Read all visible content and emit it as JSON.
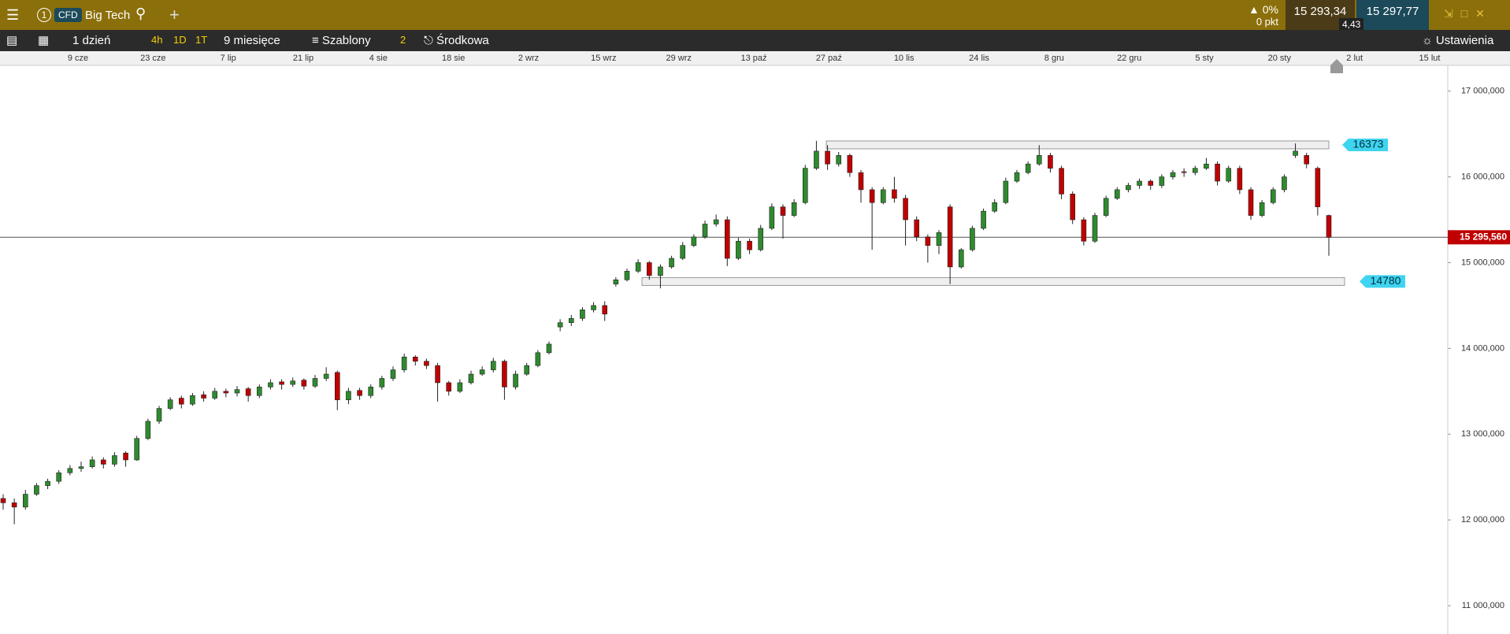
{
  "header": {
    "tab_number": "1",
    "badge": "CFD",
    "instrument": "Big Tech",
    "change_pct": "0%",
    "change_pts": "0 pkt",
    "sell": "15 293,34",
    "buy": "15 297,77",
    "spread": "4,43"
  },
  "toolbar": {
    "interval": "1 dzień",
    "quick_1": "4h",
    "quick_2": "1D",
    "quick_3": "1T",
    "range": "9 miesięce",
    "templates": "Szablony",
    "templates_count": "2",
    "price_type": "Środkowa",
    "settings": "Ustawienia"
  },
  "chart_data": {
    "type": "candlestick",
    "date_labels": [
      "9 cze",
      "23 cze",
      "7 lip",
      "21 lip",
      "4 sie",
      "18 sie",
      "2 wrz",
      "15 wrz",
      "29 wrz",
      "13 paź",
      "27 paź",
      "10 lis",
      "24 lis",
      "8 gru",
      "22 gru",
      "5 sty",
      "20 sty",
      "2 lut",
      "15 lut"
    ],
    "ohlc": [
      [
        12250,
        12300,
        12120,
        12200
      ],
      [
        12200,
        12250,
        11950,
        12150
      ],
      [
        12150,
        12350,
        12120,
        12300
      ],
      [
        12300,
        12430,
        12280,
        12400
      ],
      [
        12400,
        12480,
        12360,
        12450
      ],
      [
        12450,
        12580,
        12420,
        12550
      ],
      [
        12550,
        12640,
        12520,
        12600
      ],
      [
        12600,
        12680,
        12560,
        12620
      ],
      [
        12620,
        12740,
        12600,
        12700
      ],
      [
        12700,
        12730,
        12600,
        12650
      ],
      [
        12650,
        12790,
        12620,
        12750
      ],
      [
        12780,
        12800,
        12620,
        12700
      ],
      [
        12700,
        12980,
        12690,
        12950
      ],
      [
        12950,
        13180,
        12930,
        13150
      ],
      [
        13150,
        13330,
        13120,
        13300
      ],
      [
        13300,
        13430,
        13280,
        13400
      ],
      [
        13420,
        13450,
        13300,
        13350
      ],
      [
        13350,
        13480,
        13330,
        13450
      ],
      [
        13460,
        13500,
        13380,
        13420
      ],
      [
        13420,
        13540,
        13400,
        13500
      ],
      [
        13500,
        13530,
        13430,
        13480
      ],
      [
        13480,
        13560,
        13440,
        13520
      ],
      [
        13530,
        13550,
        13380,
        13450
      ],
      [
        13450,
        13580,
        13420,
        13550
      ],
      [
        13550,
        13640,
        13520,
        13600
      ],
      [
        13610,
        13640,
        13520,
        13580
      ],
      [
        13580,
        13660,
        13550,
        13620
      ],
      [
        13630,
        13650,
        13520,
        13560
      ],
      [
        13560,
        13690,
        13540,
        13650
      ],
      [
        13650,
        13780,
        13620,
        13700
      ],
      [
        13720,
        13740,
        13280,
        13400
      ],
      [
        13400,
        13540,
        13350,
        13500
      ],
      [
        13510,
        13540,
        13400,
        13450
      ],
      [
        13450,
        13580,
        13420,
        13550
      ],
      [
        13550,
        13680,
        13520,
        13650
      ],
      [
        13650,
        13790,
        13620,
        13750
      ],
      [
        13750,
        13940,
        13720,
        13900
      ],
      [
        13900,
        13920,
        13800,
        13850
      ],
      [
        13850,
        13880,
        13760,
        13800
      ],
      [
        13800,
        13830,
        13380,
        13600
      ],
      [
        13600,
        13620,
        13450,
        13500
      ],
      [
        13500,
        13640,
        13480,
        13600
      ],
      [
        13600,
        13740,
        13580,
        13700
      ],
      [
        13700,
        13790,
        13680,
        13750
      ],
      [
        13750,
        13890,
        13720,
        13850
      ],
      [
        13850,
        13870,
        13400,
        13550
      ],
      [
        13550,
        13740,
        13520,
        13700
      ],
      [
        13700,
        13830,
        13680,
        13800
      ],
      [
        13800,
        13980,
        13780,
        13950
      ],
      [
        13950,
        14080,
        13930,
        14050
      ],
      [
        14250,
        14340,
        14200,
        14300
      ],
      [
        14300,
        14390,
        14260,
        14350
      ],
      [
        14350,
        14480,
        14320,
        14450
      ],
      [
        14450,
        14540,
        14420,
        14500
      ],
      [
        14500,
        14550,
        14320,
        14400
      ],
      [
        14750,
        14830,
        14720,
        14800
      ],
      [
        14800,
        14930,
        14780,
        14900
      ],
      [
        14900,
        15040,
        14880,
        15000
      ],
      [
        15000,
        15020,
        14800,
        14850
      ],
      [
        14850,
        14980,
        14700,
        14950
      ],
      [
        14950,
        15080,
        14930,
        15050
      ],
      [
        15050,
        15240,
        15030,
        15200
      ],
      [
        15200,
        15330,
        15180,
        15300
      ],
      [
        15300,
        15490,
        15280,
        15450
      ],
      [
        15450,
        15560,
        15420,
        15500
      ],
      [
        15500,
        15540,
        14960,
        15050
      ],
      [
        15050,
        15290,
        15030,
        15250
      ],
      [
        15250,
        15280,
        15100,
        15150
      ],
      [
        15150,
        15440,
        15130,
        15400
      ],
      [
        15400,
        15690,
        15380,
        15650
      ],
      [
        15650,
        15680,
        15280,
        15550
      ],
      [
        15550,
        15740,
        15530,
        15700
      ],
      [
        15700,
        16140,
        15680,
        16100
      ],
      [
        16100,
        16420,
        16080,
        16300
      ],
      [
        16300,
        16370,
        16080,
        16150
      ],
      [
        16150,
        16290,
        16120,
        16250
      ],
      [
        16250,
        16270,
        16000,
        16050
      ],
      [
        16050,
        16080,
        15700,
        15850
      ],
      [
        15850,
        15880,
        15150,
        15700
      ],
      [
        15700,
        15880,
        15680,
        15850
      ],
      [
        15850,
        16000,
        15700,
        15750
      ],
      [
        15750,
        15790,
        15200,
        15500
      ],
      [
        15500,
        15540,
        15250,
        15300
      ],
      [
        15300,
        15330,
        15000,
        15200
      ],
      [
        15200,
        15380,
        15100,
        15350
      ],
      [
        15650,
        15680,
        14750,
        14950
      ],
      [
        14950,
        15170,
        14930,
        15150
      ],
      [
        15150,
        15430,
        15130,
        15400
      ],
      [
        15400,
        15630,
        15380,
        15600
      ],
      [
        15600,
        15740,
        15580,
        15700
      ],
      [
        15700,
        15990,
        15680,
        15950
      ],
      [
        15950,
        16080,
        15930,
        16050
      ],
      [
        16050,
        16180,
        16030,
        16150
      ],
      [
        16150,
        16370,
        16130,
        16250
      ],
      [
        16250,
        16280,
        16050,
        16100
      ],
      [
        16100,
        16130,
        15740,
        15800
      ],
      [
        15800,
        15830,
        15450,
        15500
      ],
      [
        15500,
        15530,
        15200,
        15250
      ],
      [
        15250,
        15580,
        15230,
        15550
      ],
      [
        15550,
        15780,
        15530,
        15750
      ],
      [
        15750,
        15880,
        15730,
        15850
      ],
      [
        15850,
        15930,
        15820,
        15900
      ],
      [
        15900,
        15980,
        15860,
        15950
      ],
      [
        15950,
        15970,
        15850,
        15900
      ],
      [
        15900,
        16030,
        15870,
        16000
      ],
      [
        16000,
        16080,
        15970,
        16050
      ],
      [
        16060,
        16100,
        16000,
        16050
      ],
      [
        16050,
        16130,
        16020,
        16100
      ],
      [
        16100,
        16220,
        16080,
        16150
      ],
      [
        16150,
        16180,
        15900,
        15950
      ],
      [
        15950,
        16130,
        15930,
        16100
      ],
      [
        16100,
        16130,
        15800,
        15850
      ],
      [
        15850,
        15880,
        15500,
        15550
      ],
      [
        15550,
        15730,
        15530,
        15700
      ],
      [
        15700,
        15880,
        15680,
        15850
      ],
      [
        15850,
        16030,
        15820,
        16000
      ],
      [
        16250,
        16390,
        16220,
        16300
      ],
      [
        16250,
        16280,
        16100,
        16150
      ],
      [
        16100,
        16120,
        15550,
        15650
      ],
      [
        15550,
        15560,
        15080,
        15295.56
      ]
    ],
    "up_color": "#2e8b2e",
    "down_color": "#c00000",
    "ylim": [
      10670,
      17300
    ],
    "yticks": [
      {
        "value": 11000,
        "label": "11 000,000"
      },
      {
        "value": 12000,
        "label": "12 000,000"
      },
      {
        "value": 13000,
        "label": "13 000,000"
      },
      {
        "value": 14000,
        "label": "14 000,000"
      },
      {
        "value": 15000,
        "label": "15 000,000"
      },
      {
        "value": 16000,
        "label": "16 000,000"
      },
      {
        "value": 17000,
        "label": "17 000,000"
      }
    ],
    "levels": [
      16373,
      14780
    ],
    "last_price": {
      "value": 15295.56,
      "label": "15 295,560"
    }
  }
}
